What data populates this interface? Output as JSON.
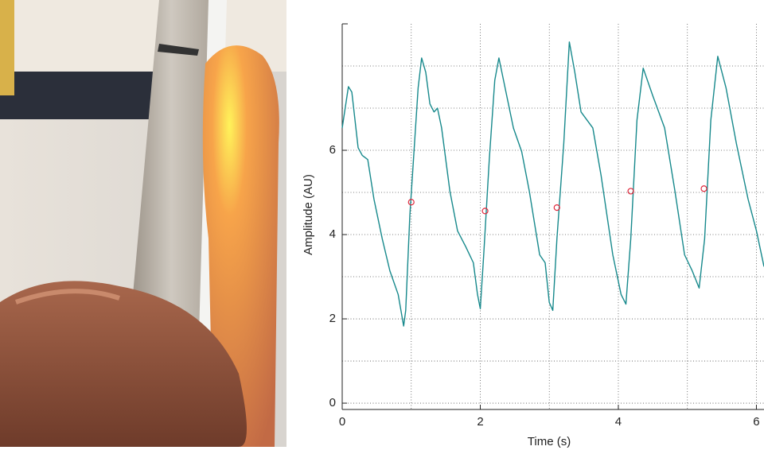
{
  "chart_data": {
    "type": "line",
    "xlabel": "Time (s)",
    "ylabel": "Amplitude (AU)",
    "xlim": [
      0,
      6.11
    ],
    "ylim": [
      -0.15,
      9
    ],
    "xticks": [
      0,
      2,
      4,
      6
    ],
    "yticks": [
      0,
      2,
      4,
      6
    ],
    "x_gridlines": [
      1,
      2,
      3,
      4,
      5,
      6
    ],
    "y_gridlines": [
      0,
      1,
      2,
      3,
      4,
      5,
      6,
      7,
      8
    ],
    "grid": true,
    "series": [
      {
        "color": "#17898c",
        "x": [
          0,
          0.09,
          0.14,
          0.23,
          0.29,
          0.37,
          0.46,
          0.58,
          0.69,
          0.81,
          0.89,
          0.92,
          0.98,
          1.04,
          1.1,
          1.15,
          1.21,
          1.27,
          1.33,
          1.38,
          1.44,
          1.56,
          1.67,
          1.79,
          1.9,
          1.96,
          2.0,
          2.05,
          2.13,
          2.21,
          2.27,
          2.36,
          2.48,
          2.6,
          2.71,
          2.86,
          2.94,
          3.0,
          3.05,
          3.11,
          3.21,
          3.29,
          3.37,
          3.46,
          3.63,
          3.75,
          3.92,
          4.04,
          4.11,
          4.18,
          4.27,
          4.36,
          4.5,
          4.67,
          4.82,
          4.96,
          5.07,
          5.17,
          5.25,
          5.34,
          5.44,
          5.56,
          5.71,
          5.88,
          6.0,
          6.11
        ],
        "values": [
          6.53,
          7.51,
          7.38,
          6.06,
          5.88,
          5.78,
          4.84,
          3.9,
          3.14,
          2.58,
          1.83,
          2.2,
          4.46,
          5.97,
          7.48,
          8.19,
          7.85,
          7.1,
          6.91,
          7.0,
          6.53,
          5.03,
          4.09,
          3.71,
          3.33,
          2.58,
          2.24,
          3.52,
          5.78,
          7.66,
          8.19,
          7.48,
          6.53,
          5.97,
          5.03,
          3.52,
          3.33,
          2.39,
          2.2,
          3.9,
          6.16,
          8.57,
          7.85,
          6.91,
          6.53,
          5.4,
          3.52,
          2.58,
          2.35,
          3.9,
          6.72,
          7.95,
          7.29,
          6.53,
          5.03,
          3.52,
          3.14,
          2.73,
          3.9,
          6.72,
          8.23,
          7.48,
          6.16,
          4.84,
          4.09,
          3.24
        ]
      },
      {
        "type": "scatter",
        "color": "#e0283c",
        "x": [
          1.0,
          2.07,
          3.11,
          4.18,
          5.24
        ],
        "values": [
          4.77,
          4.56,
          4.64,
          5.03,
          5.09
        ]
      }
    ]
  }
}
